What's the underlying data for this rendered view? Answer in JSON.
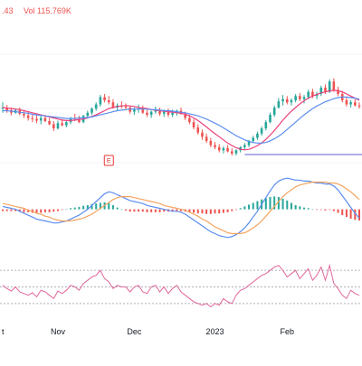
{
  "header": {
    "price_fragment": ".43",
    "volume_label": "Vol",
    "volume_value": "115.769K"
  },
  "colors": {
    "up": "#26a69a",
    "down": "#ef5350",
    "ma_fast": "#ec407a",
    "ma_slow": "#5b8def",
    "macd": "#5b8def",
    "signal": "#f4a460",
    "rsi": "#e0679b",
    "rsi_levels": "#b0b0b8",
    "support_line": "#5b5fd6",
    "grid": "#f0f3fa",
    "axis_text": "#131722",
    "event_marker": "#e53935"
  },
  "x_axis": {
    "tick_labels": [
      "t",
      "Nov",
      "Dec",
      "2023",
      "Feb"
    ]
  },
  "chart_data": [
    {
      "type": "candlestick",
      "title": "",
      "x_ticks": [
        "t",
        "Nov",
        "Dec",
        "2023",
        "Feb"
      ],
      "candles": [
        [
          66,
          67,
          65,
          66
        ],
        [
          66,
          66.5,
          65,
          65.5
        ],
        [
          65.5,
          66,
          64.5,
          65
        ],
        [
          65,
          65.8,
          64.8,
          65.5
        ],
        [
          65.5,
          66,
          64.5,
          64.8
        ],
        [
          64.8,
          65.5,
          64,
          64.5
        ],
        [
          64.5,
          65.2,
          63.5,
          64
        ],
        [
          64,
          64.8,
          63.2,
          63.8
        ],
        [
          63.8,
          64.5,
          63,
          63.5
        ],
        [
          63.5,
          64.5,
          62.8,
          64
        ],
        [
          64,
          64.6,
          63.2,
          63.4
        ],
        [
          63.4,
          64,
          62.6,
          62.8
        ],
        [
          62.8,
          63.4,
          61.5,
          62
        ],
        [
          62,
          63.5,
          61.8,
          63
        ],
        [
          63,
          63.8,
          62.4,
          62.6
        ],
        [
          62.6,
          63.6,
          62.2,
          63.2
        ],
        [
          63.2,
          64.2,
          62.8,
          64
        ],
        [
          64,
          64.8,
          63.4,
          63.8
        ],
        [
          63.8,
          64.4,
          63,
          63.2
        ],
        [
          63.2,
          64.6,
          63,
          64.4
        ],
        [
          64.4,
          65.4,
          64,
          65
        ],
        [
          65,
          66,
          64.6,
          65.8
        ],
        [
          65.8,
          67,
          65.4,
          66.6
        ],
        [
          66.6,
          68.4,
          66.2,
          68
        ],
        [
          68,
          68.6,
          67,
          67.4
        ],
        [
          67.4,
          68.2,
          66.6,
          67
        ],
        [
          67,
          67.6,
          65.8,
          66
        ],
        [
          66,
          66.8,
          65.4,
          66.4
        ],
        [
          66.4,
          67.2,
          65.8,
          66.2
        ],
        [
          66.2,
          66.8,
          65.6,
          66
        ],
        [
          66,
          66.4,
          64.8,
          65.2
        ],
        [
          65.2,
          66,
          64.6,
          65.6
        ],
        [
          65.6,
          66.6,
          65,
          65.8
        ],
        [
          65.8,
          66.4,
          64.8,
          65
        ],
        [
          65,
          65.6,
          64.2,
          64.6
        ],
        [
          64.6,
          65.4,
          64,
          65.2
        ],
        [
          65.2,
          66.2,
          64.8,
          65.4
        ],
        [
          65.4,
          66,
          64.4,
          64.8
        ],
        [
          64.8,
          65.6,
          64.2,
          65.2
        ],
        [
          65.2,
          65.8,
          64.2,
          64.6
        ],
        [
          64.6,
          65.6,
          64.2,
          65
        ],
        [
          65,
          65.6,
          64.4,
          65.4
        ],
        [
          65.4,
          66,
          64.6,
          64.8
        ],
        [
          64.8,
          65.2,
          63.6,
          64
        ],
        [
          64,
          64.6,
          62.8,
          63.2
        ],
        [
          63.2,
          63.8,
          61.8,
          62.2
        ],
        [
          62.2,
          62.8,
          60.8,
          61.2
        ],
        [
          61.2,
          61.8,
          59.8,
          60.4
        ],
        [
          60.4,
          61,
          59.2,
          59.6
        ],
        [
          59.6,
          60.2,
          58.4,
          58.8
        ],
        [
          58.8,
          59.4,
          58,
          58.4
        ],
        [
          58.4,
          59,
          57.4,
          57.8
        ],
        [
          57.8,
          58.6,
          57.2,
          58.2
        ],
        [
          58.2,
          58.8,
          57.4,
          57.6
        ],
        [
          57.6,
          58.2,
          56.8,
          57.2
        ],
        [
          57.2,
          58,
          56.8,
          57.8
        ],
        [
          57.8,
          58.6,
          57.4,
          58.4
        ],
        [
          58.4,
          59.2,
          58,
          58.8
        ],
        [
          58.8,
          59.8,
          58.4,
          59.6
        ],
        [
          59.6,
          60.6,
          59.2,
          60.2
        ],
        [
          60.2,
          61.4,
          59.8,
          61
        ],
        [
          61,
          62.4,
          60.6,
          62
        ],
        [
          62,
          63.6,
          61.6,
          63.2
        ],
        [
          63.2,
          65,
          63,
          64.6
        ],
        [
          64.6,
          66.4,
          64.2,
          66
        ],
        [
          66,
          67.8,
          65.8,
          67.2
        ],
        [
          67.2,
          68.4,
          66.4,
          67.6
        ],
        [
          67.6,
          68.2,
          66.6,
          67
        ],
        [
          67,
          67.8,
          66.4,
          67.4
        ],
        [
          67.4,
          68.6,
          67,
          68.2
        ],
        [
          68.2,
          68.8,
          67.2,
          67.6
        ],
        [
          67.6,
          68.4,
          66.8,
          68
        ],
        [
          68,
          69.4,
          67.6,
          69
        ],
        [
          69,
          69.6,
          67.8,
          68.2
        ],
        [
          68.2,
          69,
          67.6,
          68.6
        ],
        [
          68.6,
          70.2,
          68.2,
          69.8
        ],
        [
          69.8,
          70.4,
          68.6,
          69
        ],
        [
          69,
          71.4,
          68.8,
          71
        ],
        [
          71,
          71.6,
          69,
          69.4
        ],
        [
          69.4,
          70,
          68.2,
          68.6
        ],
        [
          68.6,
          69.2,
          67,
          67.4
        ],
        [
          67.4,
          68,
          66.2,
          66.6
        ],
        [
          66.6,
          67.4,
          66,
          67
        ],
        [
          67,
          67.6,
          66.2,
          66.4
        ],
        [
          66.4,
          67,
          65.8,
          66.2
        ]
      ],
      "moving_averages": [
        {
          "name": "ma_fast",
          "values": [
            66,
            65.9,
            65.8,
            65.7,
            65.6,
            65.4,
            65.2,
            65,
            64.8,
            64.6,
            64.4,
            64.2,
            64,
            63.8,
            63.6,
            63.5,
            63.5,
            63.6,
            63.7,
            63.8,
            64,
            64.3,
            64.6,
            65,
            65.4,
            65.8,
            66,
            66.2,
            66.3,
            66.4,
            66.3,
            66.2,
            66,
            65.9,
            65.8,
            65.6,
            65.5,
            65.4,
            65.3,
            65.2,
            65.1,
            65,
            64.9,
            64.7,
            64.4,
            64,
            63.5,
            62.9,
            62.3,
            61.6,
            61,
            60.4,
            59.8,
            59.2,
            58.7,
            58.3,
            58,
            57.9,
            58,
            58.3,
            58.7,
            59.2,
            59.9,
            60.7,
            61.6,
            62.6,
            63.6,
            64.5,
            65.3,
            66,
            66.7,
            67.3,
            67.8,
            68.2,
            68.5,
            68.8,
            69,
            69.2,
            69.3,
            69.2,
            69,
            68.6,
            68.2,
            67.8,
            67.4
          ]
        },
        {
          "name": "ma_slow",
          "values": [
            65.4,
            65.4,
            65.3,
            65.2,
            65.1,
            65,
            64.9,
            64.7,
            64.6,
            64.5,
            64.4,
            64.3,
            64.2,
            64.1,
            64,
            63.9,
            63.9,
            63.9,
            64,
            64,
            64.1,
            64.2,
            64.4,
            64.6,
            64.8,
            65,
            65.2,
            65.4,
            65.5,
            65.6,
            65.7,
            65.7,
            65.7,
            65.7,
            65.7,
            65.6,
            65.6,
            65.5,
            65.4,
            65.4,
            65.3,
            65.2,
            65.1,
            65,
            64.8,
            64.6,
            64.4,
            64.1,
            63.8,
            63.4,
            63,
            62.6,
            62.1,
            61.6,
            61.1,
            60.6,
            60.2,
            59.8,
            59.5,
            59.3,
            59.2,
            59.2,
            59.3,
            59.6,
            60,
            60.5,
            61.1,
            61.8,
            62.5,
            63.2,
            63.9,
            64.6,
            65.2,
            65.8,
            66.3,
            66.7,
            67.1,
            67.4,
            67.7,
            67.9,
            68,
            68,
            67.9,
            67.8,
            67.6
          ]
        }
      ],
      "support_level": 57,
      "event_marker": {
        "label": "E",
        "index": 25
      }
    },
    {
      "type": "macd",
      "macd": [
        0.3,
        0.2,
        0.1,
        0,
        -0.2,
        -0.4,
        -0.6,
        -0.8,
        -1,
        -1.1,
        -1.2,
        -1.3,
        -1.4,
        -1.4,
        -1.3,
        -1.2,
        -1,
        -0.8,
        -0.6,
        -0.3,
        0,
        0.4,
        0.8,
        1.2,
        1.6,
        1.8,
        1.7,
        1.5,
        1.3,
        1.1,
        0.9,
        0.8,
        0.7,
        0.6,
        0.4,
        0.3,
        0.2,
        0.1,
        0,
        -0.1,
        -0.2,
        -0.2,
        -0.3,
        -0.5,
        -0.8,
        -1.1,
        -1.4,
        -1.7,
        -2,
        -2.3,
        -2.5,
        -2.7,
        -2.8,
        -2.9,
        -2.8,
        -2.6,
        -2.3,
        -1.9,
        -1.4,
        -0.8,
        -0.2,
        0.5,
        1.2,
        1.9,
        2.5,
        2.9,
        3.1,
        3.2,
        3.1,
        3,
        3,
        2.9,
        2.9,
        2.8,
        2.7,
        2.7,
        2.6,
        2.6,
        2.4,
        2,
        1.4,
        0.8,
        0.2,
        -0.4,
        -0.9
      ],
      "signal": [
        0.6,
        0.5,
        0.4,
        0.3,
        0.2,
        0.1,
        -0.1,
        -0.2,
        -0.4,
        -0.5,
        -0.7,
        -0.8,
        -1,
        -1.1,
        -1.2,
        -1.2,
        -1.2,
        -1.1,
        -1,
        -0.9,
        -0.7,
        -0.5,
        -0.2,
        0.1,
        0.4,
        0.7,
        1,
        1.2,
        1.3,
        1.3,
        1.3,
        1.2,
        1.1,
        1,
        0.9,
        0.8,
        0.7,
        0.6,
        0.4,
        0.3,
        0.2,
        0.1,
        0,
        -0.1,
        -0.3,
        -0.5,
        -0.7,
        -1,
        -1.2,
        -1.5,
        -1.8,
        -2,
        -2.2,
        -2.4,
        -2.5,
        -2.5,
        -2.5,
        -2.4,
        -2.2,
        -1.9,
        -1.6,
        -1.2,
        -0.7,
        -0.2,
        0.3,
        0.8,
        1.3,
        1.7,
        2,
        2.3,
        2.5,
        2.6,
        2.7,
        2.8,
        2.8,
        2.8,
        2.8,
        2.7,
        2.7,
        2.6,
        2.4,
        2.1,
        1.8,
        1.4,
        1
      ]
    },
    {
      "type": "line",
      "name": "rsi",
      "levels": [
        70,
        50,
        30
      ],
      "values": [
        52,
        48,
        45,
        50,
        44,
        42,
        40,
        43,
        38,
        46,
        44,
        40,
        36,
        45,
        42,
        46,
        52,
        50,
        46,
        54,
        58,
        62,
        64,
        70,
        60,
        56,
        48,
        52,
        50,
        50,
        44,
        50,
        52,
        44,
        42,
        50,
        52,
        44,
        50,
        42,
        48,
        52,
        44,
        40,
        36,
        32,
        30,
        28,
        30,
        26,
        30,
        28,
        36,
        32,
        30,
        40,
        46,
        48,
        52,
        56,
        60,
        64,
        66,
        70,
        74,
        76,
        70,
        62,
        66,
        70,
        60,
        66,
        72,
        58,
        64,
        74,
        58,
        76,
        54,
        48,
        40,
        36,
        46,
        42,
        40
      ]
    }
  ]
}
